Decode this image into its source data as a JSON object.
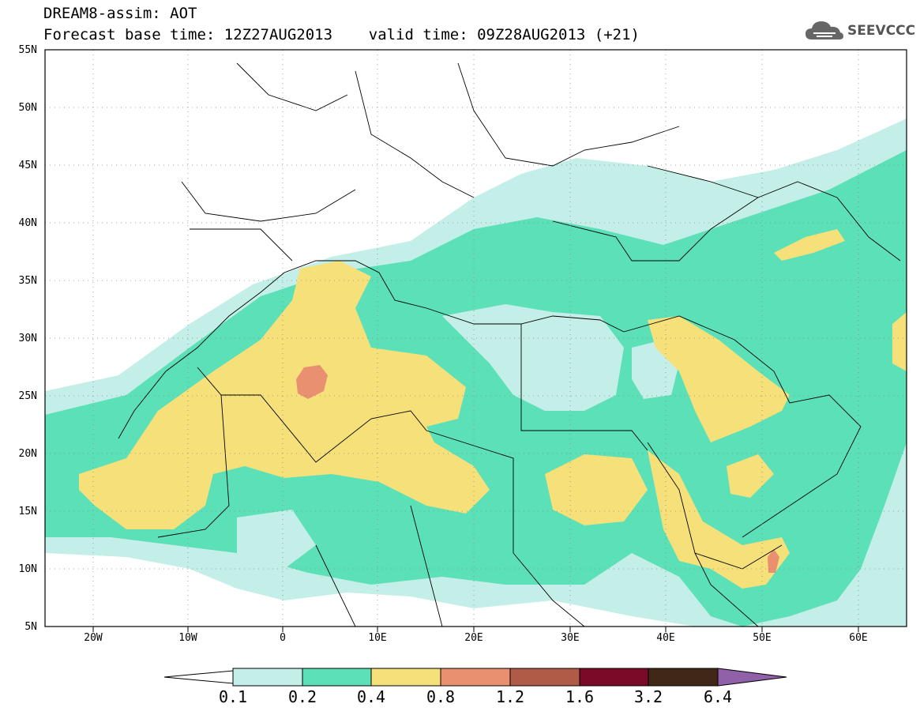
{
  "header": {
    "line1": "DREAM8-assim: AOT",
    "line2": "Forecast base time: 12Z27AUG2013    valid time: 09Z28AUG2013 (+21)"
  },
  "logo": {
    "text": "SEEVCCC",
    "icon": "cloud-icon"
  },
  "map": {
    "lat_labels": [
      "55N",
      "50N",
      "45N",
      "40N",
      "35N",
      "30N",
      "25N",
      "20N",
      "15N",
      "10N",
      "5N"
    ],
    "lon_labels": [
      "20W",
      "10W",
      "0",
      "10E",
      "20E",
      "30E",
      "40E",
      "50E",
      "60E"
    ],
    "extent": {
      "lon": [
        -25,
        65
      ],
      "lat": [
        5,
        55
      ]
    },
    "colors": {
      "ocean": "#ffffff",
      "c_0_1": "#c3efe8",
      "c_0_2": "#5ce0b8",
      "c_0_4": "#f5e07a",
      "c_0_8": "#e89070",
      "c_1_2": "#b05a48",
      "c_1_6": "#7a0a28",
      "c_3_2": "#402818",
      "c_6_4": "#9060a8",
      "border": "#000000"
    }
  },
  "colorbar": {
    "labels": [
      "0.1",
      "0.2",
      "0.4",
      "0.8",
      "1.2",
      "1.6",
      "3.2",
      "6.4"
    ]
  }
}
